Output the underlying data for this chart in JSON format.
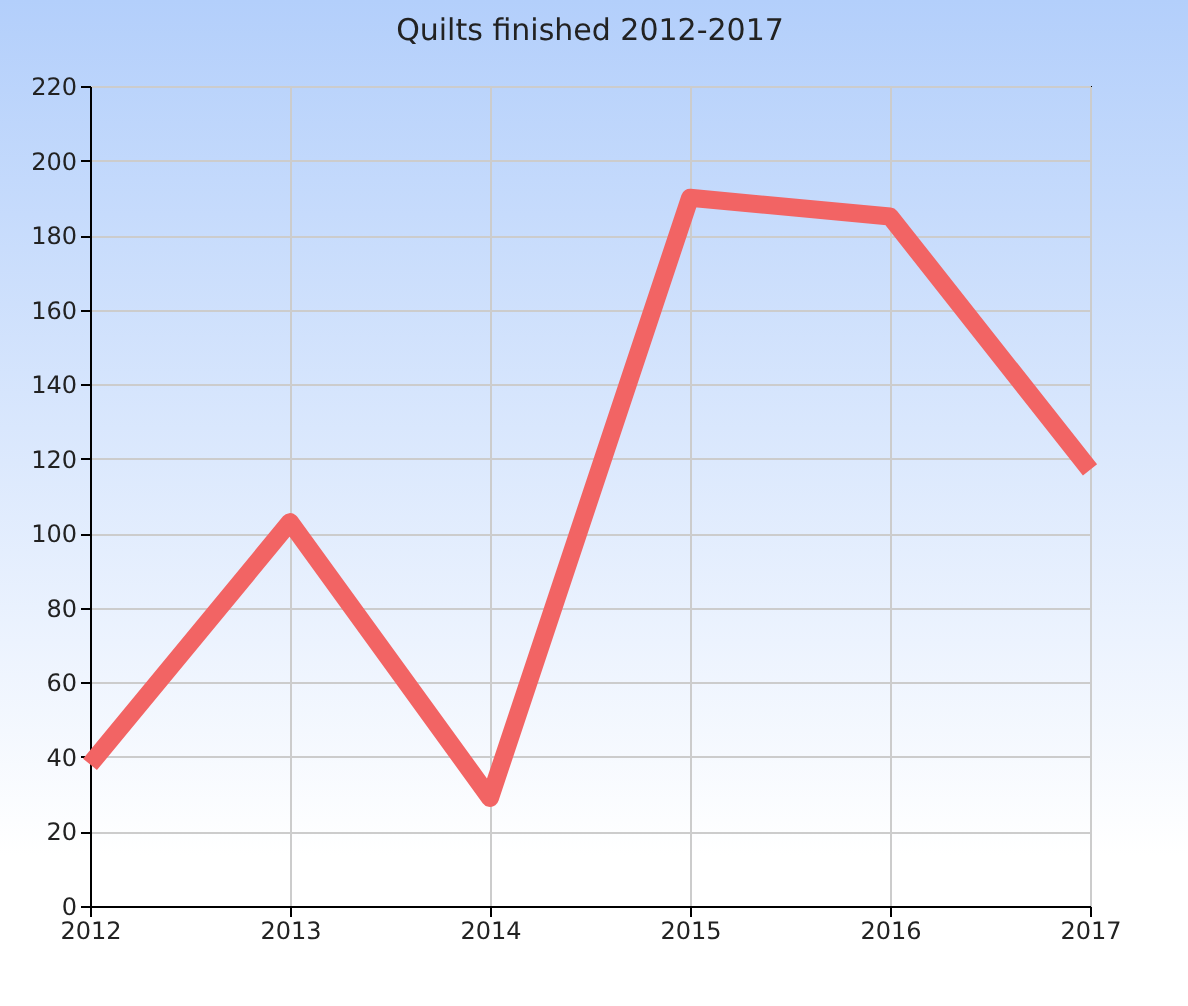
{
  "chart_data": {
    "type": "line",
    "title": "Quilts finished 2012-2017",
    "categories": [
      "2012",
      "2013",
      "2014",
      "2015",
      "2016",
      "2017"
    ],
    "series": [
      {
        "color": "#f26464",
        "values": [
          38,
          103,
          29,
          190,
          185,
          117
        ]
      }
    ],
    "ylim": [
      0,
      220
    ],
    "yticks": [
      0,
      20,
      40,
      60,
      80,
      100,
      120,
      140,
      160,
      180,
      200,
      220
    ],
    "grid": true,
    "marker": "none",
    "line_style": "solid"
  }
}
